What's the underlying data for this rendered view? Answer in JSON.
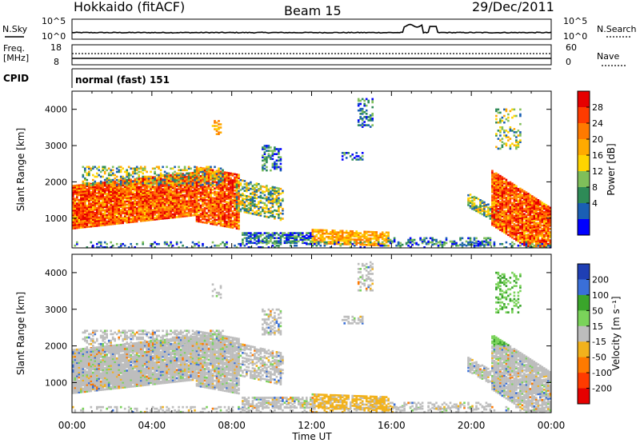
{
  "header": {
    "station": "Hokkaido (fitACF)",
    "beam": "Beam 15",
    "date": "29/Dec/2011"
  },
  "sky_panel": {
    "left_label": "N.Sky",
    "right_label": "N.Search",
    "left_ticks": [
      "10^5",
      "10^0"
    ],
    "right_ticks": [
      "10^5",
      "10^0"
    ]
  },
  "freq_panel": {
    "left_label_1": "Freq.",
    "left_label_2": "[MHz]",
    "left_ticks": [
      "18",
      "8"
    ],
    "right_label": "Nave",
    "right_ticks": [
      "60",
      "0"
    ]
  },
  "cpid_panel": {
    "label": "CPID",
    "mode": "normal (fast) 151"
  },
  "x_axis": {
    "label": "Time UT",
    "ticks": [
      "00:00",
      "04:00",
      "08:00",
      "12:00",
      "16:00",
      "20:00",
      "00:00"
    ]
  },
  "chart_data": [
    {
      "type": "heatmap",
      "name": "power",
      "ylabel": "Slant Range [km]",
      "y_ticks": [
        "4000",
        "3000",
        "2000",
        "1000"
      ],
      "ylim": [
        180,
        4500
      ],
      "xlim_hours": [
        0,
        24
      ],
      "colorbar": {
        "label": "Power [dB]",
        "ticks": [
          "28",
          "24",
          "20",
          "16",
          "12",
          "8",
          "4"
        ],
        "colors": [
          "#e60000",
          "#ff3b00",
          "#ff7a00",
          "#ffaa00",
          "#ffd400",
          "#7fbf5a",
          "#2e8b57",
          "#1a5fb4",
          "#0000ff"
        ]
      }
    },
    {
      "type": "heatmap",
      "name": "velocity",
      "ylabel": "Slant Range [km]",
      "y_ticks": [
        "4000",
        "3000",
        "2000",
        "1000"
      ],
      "ylim": [
        180,
        4500
      ],
      "xlim_hours": [
        0,
        24
      ],
      "colorbar": {
        "label": "Velocity [m s⁻¹]",
        "ticks": [
          "200",
          "100",
          "50",
          "15",
          "-15",
          "-50",
          "-100",
          "-200"
        ],
        "colors": [
          "#1f3fb4",
          "#3a6fd8",
          "#3aa52b",
          "#7ad35a",
          "#bdbdbd",
          "#f2b21c",
          "#ff7a00",
          "#ff3b00",
          "#e60000"
        ]
      }
    }
  ]
}
